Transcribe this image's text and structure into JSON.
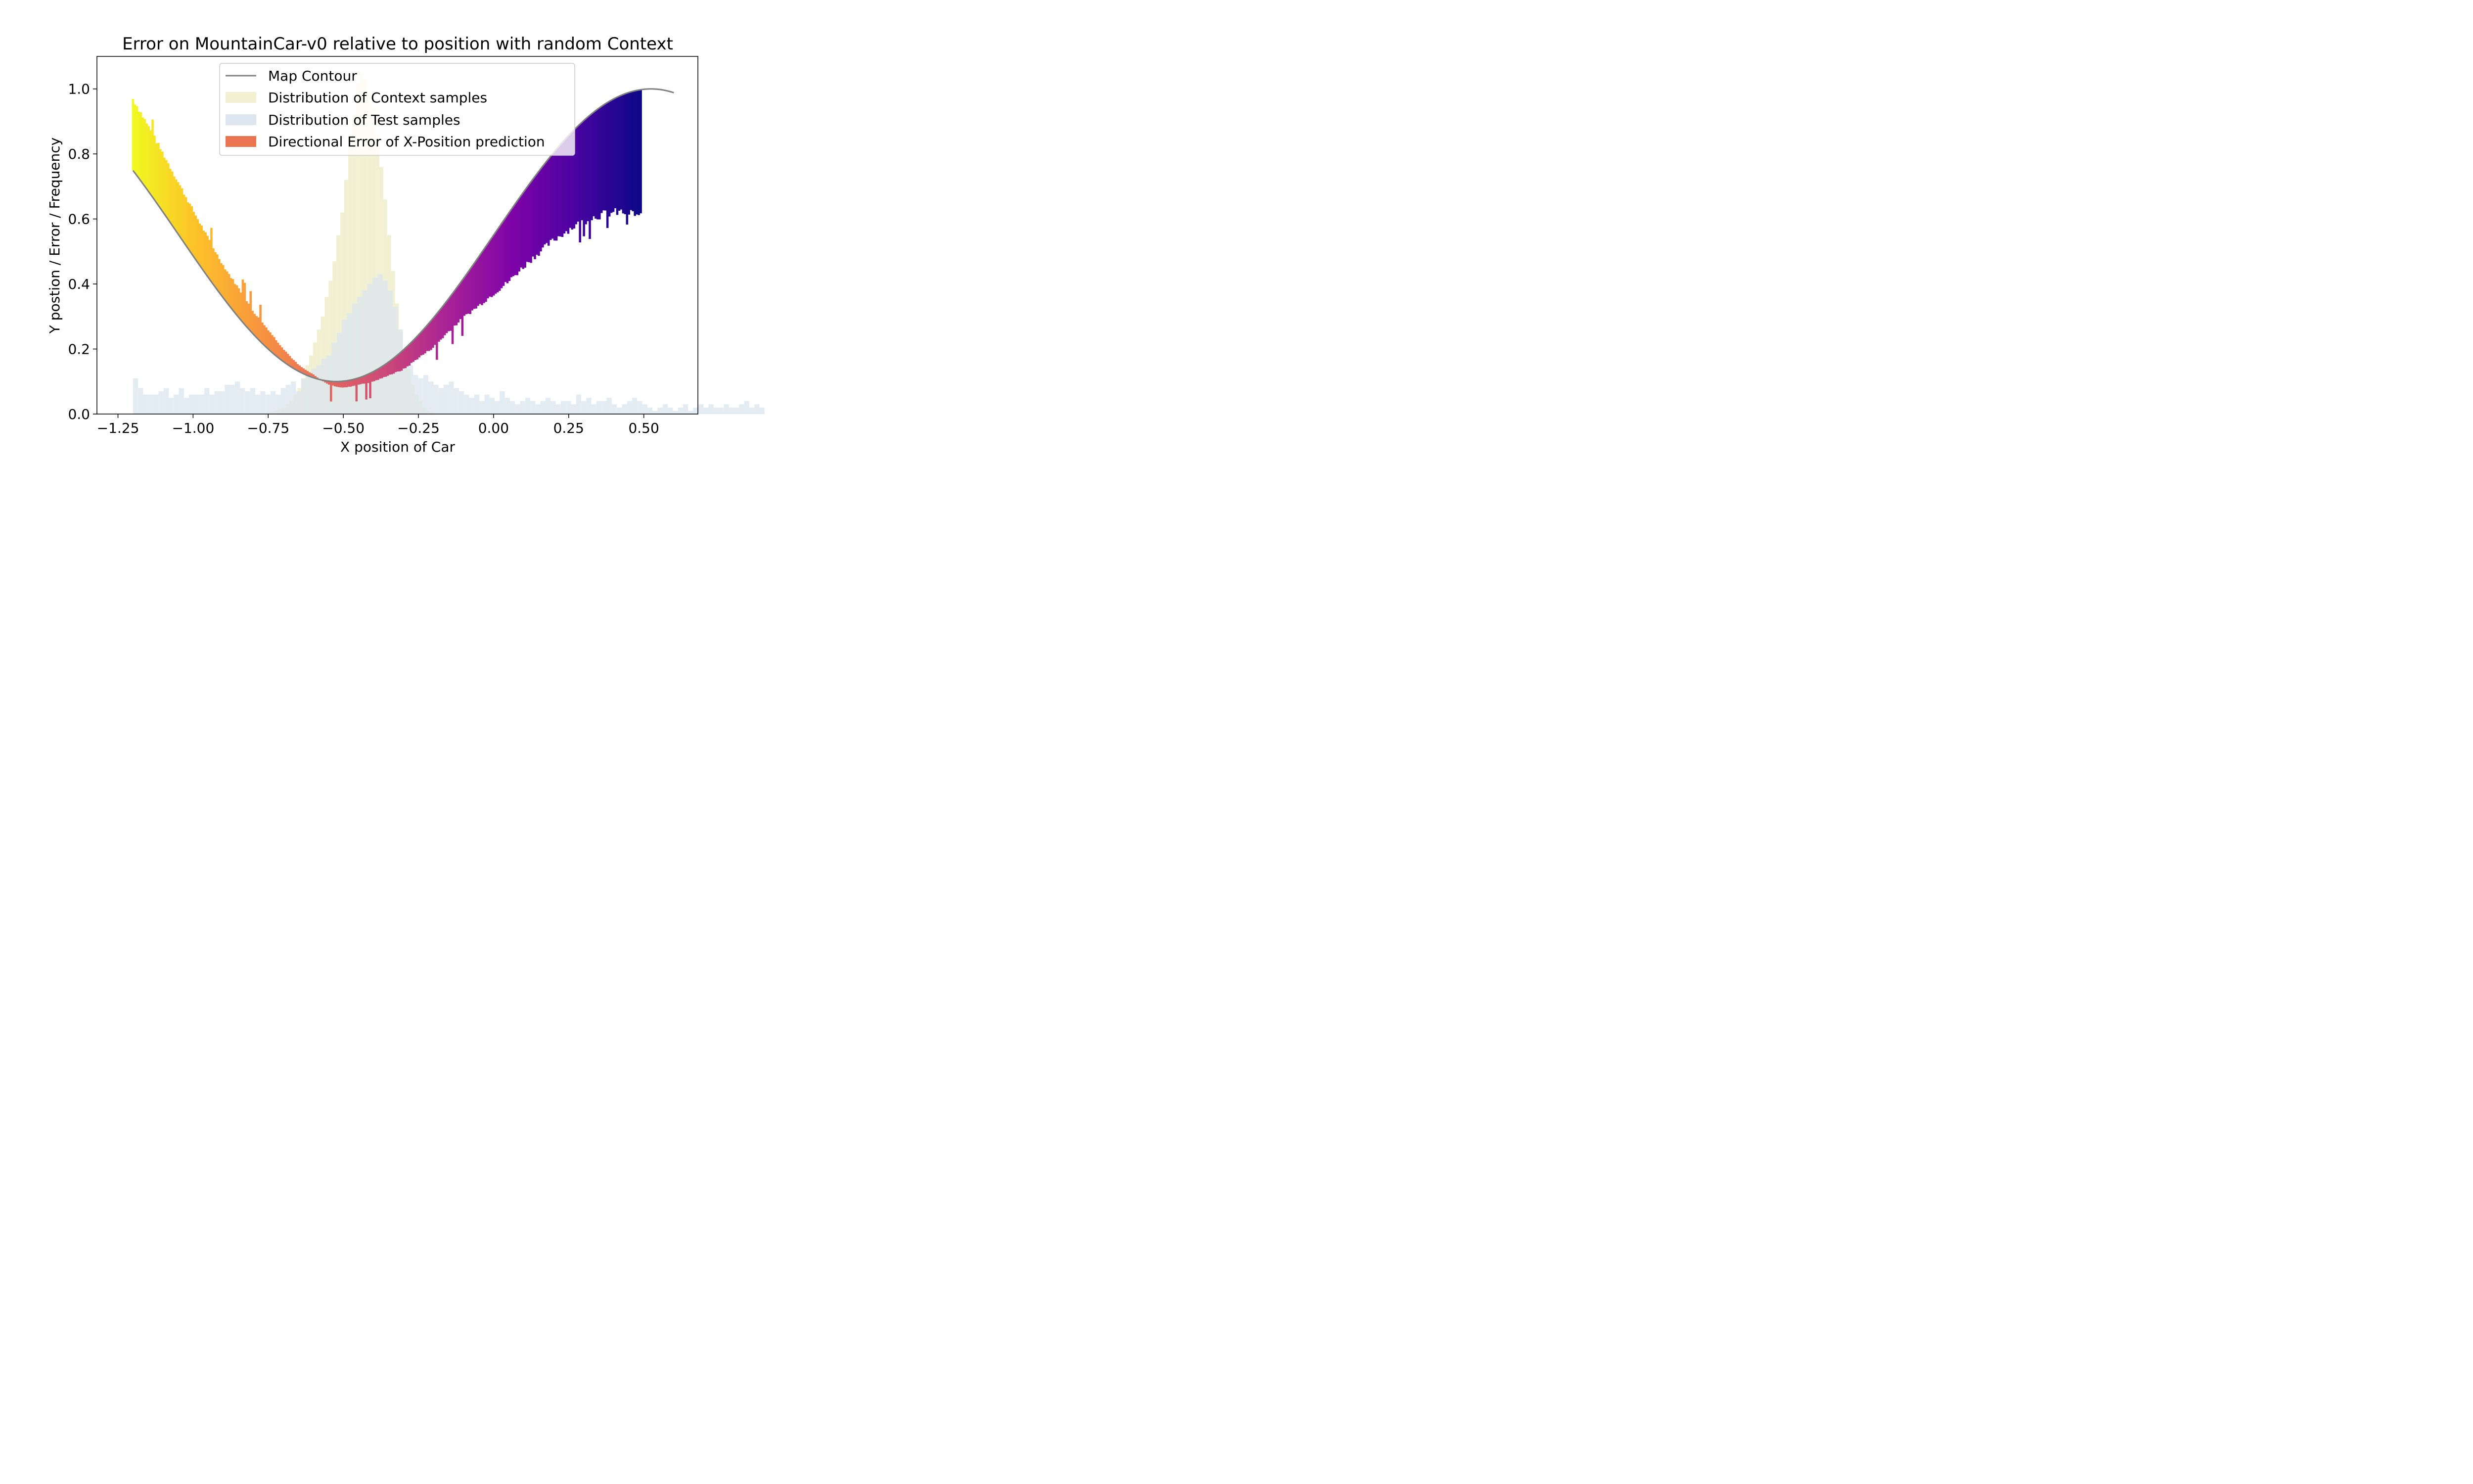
{
  "chart_data": {
    "type": "bar",
    "title": "Error on MountainCar-v0 relative to position with random Context",
    "xlabel": "X position of Car",
    "ylabel": "Y postion / Error / Frequency",
    "xlim": [
      -1.32,
      0.68
    ],
    "ylim": [
      0.0,
      1.1
    ],
    "xticks": [
      "−1.25",
      "−1.00",
      "−0.75",
      "−0.50",
      "−0.25",
      "0.00",
      "0.25",
      "0.50"
    ],
    "xtick_values": [
      -1.25,
      -1.0,
      -0.75,
      -0.5,
      -0.25,
      0.0,
      0.25,
      0.5
    ],
    "yticks": [
      "0.0",
      "0.2",
      "0.4",
      "0.6",
      "0.8",
      "1.0"
    ],
    "ytick_values": [
      0.0,
      0.2,
      0.4,
      0.6,
      0.8,
      1.0
    ],
    "legend_position": "upper-center",
    "colors": {
      "contour": "#808080",
      "context_hist": "#f2f0d3",
      "test_hist": "#dbe6ef",
      "error_legend": "#e9744f",
      "colormap": "plasma"
    },
    "series": [
      {
        "name": "Map Contour",
        "kind": "line",
        "formula": "y = 0.45*sin(3x) + 0.55",
        "x_range": [
          -1.2,
          0.6
        ]
      },
      {
        "name": "Distribution of Context samples",
        "kind": "histogram",
        "x_start": -0.77,
        "bin_width": 0.013,
        "values": [
          0.002,
          0.004,
          0.006,
          0.01,
          0.015,
          0.02,
          0.03,
          0.04,
          0.06,
          0.08,
          0.11,
          0.15,
          0.18,
          0.22,
          0.26,
          0.3,
          0.36,
          0.41,
          0.47,
          0.55,
          0.62,
          0.72,
          0.82,
          0.92,
          1.02,
          1.05,
          1.03,
          0.99,
          0.94,
          0.86,
          0.76,
          0.66,
          0.55,
          0.44,
          0.34,
          0.26,
          0.19,
          0.14,
          0.09,
          0.06,
          0.04,
          0.02,
          0.01,
          0.005
        ]
      },
      {
        "name": "Distribution of Test samples",
        "kind": "histogram",
        "x_start": -1.2,
        "bin_width": 0.01695,
        "values": [
          0.11,
          0.08,
          0.06,
          0.06,
          0.06,
          0.07,
          0.08,
          0.05,
          0.06,
          0.08,
          0.05,
          0.06,
          0.06,
          0.06,
          0.08,
          0.06,
          0.07,
          0.07,
          0.09,
          0.09,
          0.1,
          0.08,
          0.07,
          0.08,
          0.06,
          0.07,
          0.06,
          0.07,
          0.06,
          0.08,
          0.09,
          0.1,
          0.07,
          0.11,
          0.13,
          0.14,
          0.15,
          0.17,
          0.18,
          0.22,
          0.25,
          0.29,
          0.31,
          0.34,
          0.36,
          0.38,
          0.4,
          0.42,
          0.43,
          0.41,
          0.38,
          0.33,
          0.26,
          0.2,
          0.15,
          0.12,
          0.11,
          0.12,
          0.1,
          0.09,
          0.08,
          0.09,
          0.1,
          0.08,
          0.07,
          0.06,
          0.05,
          0.06,
          0.04,
          0.06,
          0.05,
          0.04,
          0.07,
          0.05,
          0.04,
          0.03,
          0.04,
          0.05,
          0.04,
          0.03,
          0.04,
          0.05,
          0.04,
          0.03,
          0.04,
          0.04,
          0.03,
          0.06,
          0.04,
          0.05,
          0.03,
          0.04,
          0.04,
          0.05,
          0.03,
          0.02,
          0.03,
          0.04,
          0.05,
          0.04,
          0.03,
          0.02,
          0.01,
          0.02,
          0.03,
          0.02,
          0.01,
          0.02,
          0.03,
          0.01,
          0.02,
          0.03,
          0.02,
          0.03,
          0.02,
          0.02,
          0.03,
          0.02,
          0.02,
          0.03,
          0.04,
          0.02,
          0.03,
          0.02
        ]
      },
      {
        "name": "Directional Error of X-Position prediction",
        "kind": "error_bars",
        "x_start": -1.2,
        "x_end": 0.49,
        "bar_count": 260,
        "error_profile": {
          "x": [
            -1.2,
            -1.15,
            -1.1,
            -1.05,
            -1.0,
            -0.95,
            -0.9,
            -0.85,
            -0.8,
            -0.75,
            -0.7,
            -0.65,
            -0.6,
            -0.55,
            -0.5,
            -0.45,
            -0.4,
            -0.35,
            -0.3,
            -0.25,
            -0.2,
            -0.15,
            -0.1,
            -0.05,
            0.0,
            0.05,
            0.1,
            0.15,
            0.2,
            0.25,
            0.3,
            0.35,
            0.4,
            0.45,
            0.49
          ],
          "offset": [
            0.22,
            0.2,
            0.18,
            0.16,
            0.14,
            0.12,
            0.1,
            0.09,
            0.07,
            0.06,
            0.04,
            0.02,
            0.01,
            -0.01,
            -0.02,
            -0.02,
            -0.03,
            -0.04,
            -0.06,
            -0.07,
            -0.09,
            -0.1,
            -0.12,
            -0.15,
            -0.18,
            -0.21,
            -0.23,
            -0.25,
            -0.27,
            -0.29,
            -0.31,
            -0.33,
            -0.35,
            -0.37,
            -0.39
          ]
        }
      }
    ]
  }
}
